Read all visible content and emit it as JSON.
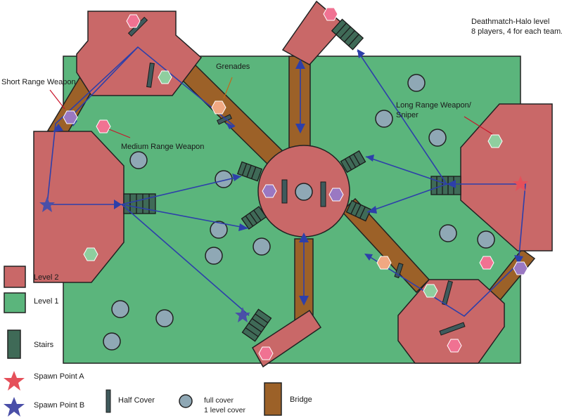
{
  "title": {
    "line1": "Deathmatch-Halo level",
    "line2": "8 players, 4 for each team."
  },
  "annotations": {
    "short_range": "Short Range Weapon",
    "grenades": "Grenades",
    "medium_range": "Medium Range Weapon",
    "long_range_line1": "Long Range Weapon/",
    "long_range_line2": "Sniper"
  },
  "legend": {
    "level2": "Level 2",
    "level1": "Level 1",
    "stairs": "Stairs",
    "spawn_a": "Spawn Point A",
    "spawn_b": "Spawn Point B",
    "half_cover": "Half Cover",
    "full_cover_line1": "full cover",
    "full_cover_line2": "1 level cover",
    "bridge": "Bridge"
  },
  "colors": {
    "level1": "#5bb57c",
    "level2": "#c96868",
    "bridge": "#9c6128",
    "stairs": "#3f6a57",
    "cover": "#8fa8b5",
    "half_cover": "#3f5a5c",
    "path": "#2d3faa",
    "spawn_a": "#e5505a",
    "spawn_b": "#4a4fa8",
    "weapon_short": "#9a78c2",
    "weapon_grenade": "#f0a882",
    "weapon_medium": "#f07292",
    "weapon_long": "#8fce9f"
  }
}
